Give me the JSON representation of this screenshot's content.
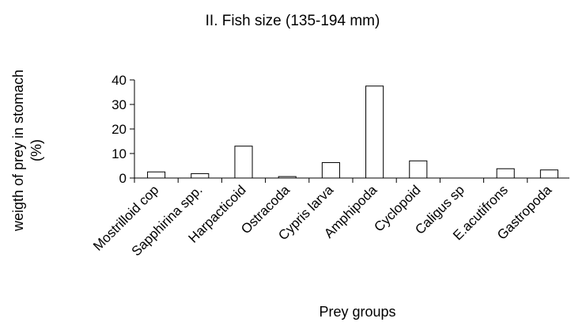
{
  "chart_data": {
    "type": "bar",
    "title": "II. Fish size (135-194 mm)",
    "xlabel": "Prey groups",
    "ylabel": [
      "weigth of prey in stomach",
      "(%)"
    ],
    "categories": [
      "Mostrilloid cop",
      "Sapphirina spp.",
      "Harpacticoid",
      "Ostracoda",
      "Cypris larva",
      "Amphipoda",
      "Cyclopoid",
      "Caligus sp",
      "E.acutifrons",
      "Gastropoda"
    ],
    "values": [
      2.5,
      1.8,
      13,
      0.6,
      6.3,
      37.5,
      7,
      0,
      3.8,
      3.3
    ],
    "ylim": [
      0,
      40
    ],
    "yticks": [
      "0",
      "10",
      "20",
      "30",
      "40"
    ],
    "grid": false,
    "legend": "none",
    "colors": {
      "bar_fill": "#ffffff",
      "bar_stroke": "#000000",
      "axis": "#000000"
    }
  }
}
